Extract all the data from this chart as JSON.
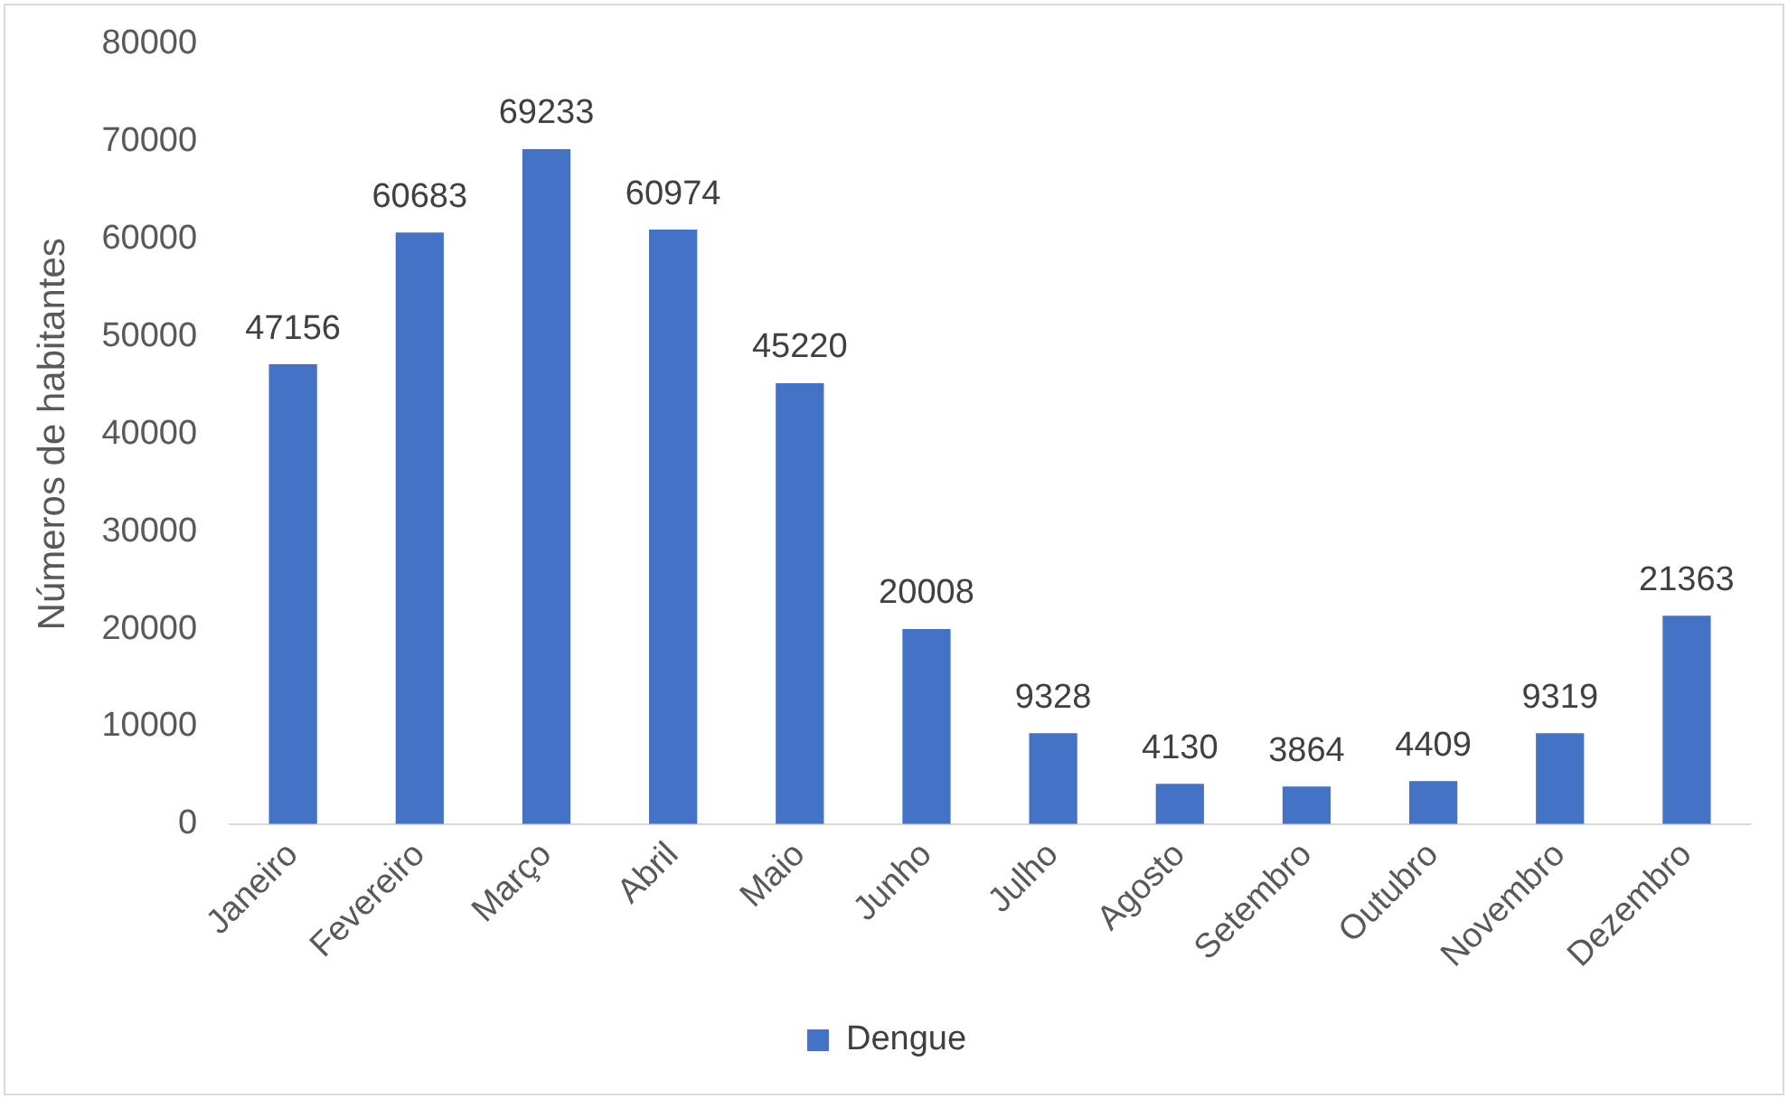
{
  "chart_data": {
    "type": "bar",
    "ylabel": "Números de habitantes",
    "categories": [
      "Janeiro",
      "Fevereiro",
      "Março",
      "Abril",
      "Maio",
      "Junho",
      "Julho",
      "Agosto",
      "Setembro",
      "Outubro",
      "Novembro",
      "Dezembro"
    ],
    "series": [
      {
        "name": "Dengue",
        "color": "#4472c4",
        "values": [
          47156,
          60683,
          69233,
          60974,
          45220,
          20008,
          9328,
          4130,
          3864,
          4409,
          9319,
          21363
        ]
      }
    ],
    "ylim": [
      0,
      80000
    ],
    "yticks": [
      0,
      10000,
      20000,
      30000,
      40000,
      50000,
      60000,
      70000,
      80000
    ],
    "grid": false,
    "legend": "bottom",
    "data_labels": true
  }
}
